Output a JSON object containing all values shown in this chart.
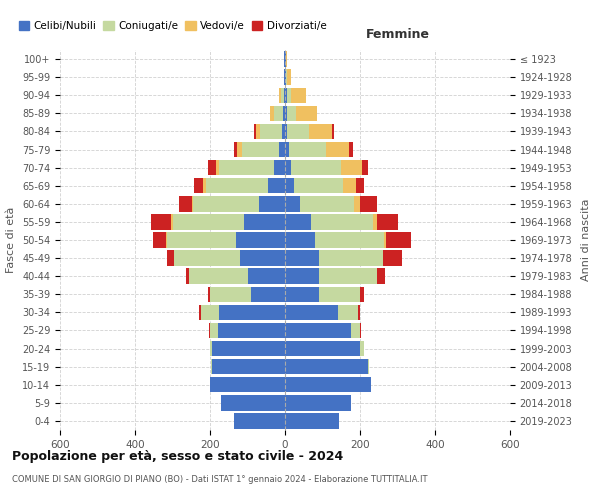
{
  "age_groups": [
    "0-4",
    "5-9",
    "10-14",
    "15-19",
    "20-24",
    "25-29",
    "30-34",
    "35-39",
    "40-44",
    "45-49",
    "50-54",
    "55-59",
    "60-64",
    "65-69",
    "70-74",
    "75-79",
    "80-84",
    "85-89",
    "90-94",
    "95-99",
    "100+"
  ],
  "birth_years": [
    "2019-2023",
    "2014-2018",
    "2009-2013",
    "2004-2008",
    "1999-2003",
    "1994-1998",
    "1989-1993",
    "1984-1988",
    "1979-1983",
    "1974-1978",
    "1969-1973",
    "1964-1968",
    "1959-1963",
    "1954-1958",
    "1949-1953",
    "1944-1948",
    "1939-1943",
    "1934-1938",
    "1929-1933",
    "1924-1928",
    "≤ 1923"
  ],
  "males": {
    "celibi": [
      135,
      170,
      200,
      195,
      195,
      180,
      175,
      90,
      100,
      120,
      130,
      110,
      70,
      45,
      30,
      15,
      8,
      5,
      3,
      2,
      2
    ],
    "coniugati": [
      0,
      0,
      0,
      3,
      5,
      20,
      50,
      110,
      155,
      175,
      185,
      190,
      175,
      165,
      145,
      100,
      60,
      25,
      8,
      2,
      0
    ],
    "vedovi": [
      0,
      0,
      0,
      0,
      0,
      0,
      0,
      0,
      0,
      1,
      2,
      3,
      4,
      8,
      10,
      12,
      10,
      10,
      5,
      0,
      0
    ],
    "divorziati": [
      0,
      0,
      0,
      0,
      0,
      2,
      5,
      5,
      10,
      20,
      35,
      55,
      35,
      25,
      20,
      10,
      5,
      0,
      0,
      0,
      0
    ]
  },
  "females": {
    "nubili": [
      145,
      175,
      230,
      220,
      200,
      175,
      140,
      90,
      90,
      90,
      80,
      70,
      40,
      25,
      15,
      10,
      5,
      5,
      5,
      2,
      2
    ],
    "coniugate": [
      0,
      0,
      0,
      5,
      10,
      25,
      55,
      110,
      155,
      170,
      185,
      165,
      145,
      130,
      135,
      100,
      60,
      25,
      10,
      3,
      0
    ],
    "vedove": [
      0,
      0,
      0,
      0,
      0,
      0,
      0,
      0,
      1,
      2,
      5,
      10,
      15,
      35,
      55,
      60,
      60,
      55,
      40,
      10,
      2
    ],
    "divorziate": [
      0,
      0,
      0,
      0,
      0,
      2,
      5,
      10,
      20,
      50,
      65,
      55,
      45,
      20,
      15,
      10,
      5,
      0,
      0,
      0,
      0
    ]
  },
  "colors": {
    "celibi": "#4472c4",
    "coniugati": "#c5d9a0",
    "vedovi": "#f0c060",
    "divorziati": "#cc2222"
  },
  "legend_labels": [
    "Celibi/Nubili",
    "Coniugati/e",
    "Vedovi/e",
    "Divorziati/e"
  ],
  "title": "Popolazione per età, sesso e stato civile - 2024",
  "subtitle": "COMUNE DI SAN GIORGIO DI PIANO (BO) - Dati ISTAT 1° gennaio 2024 - Elaborazione TUTTITALIA.IT",
  "xlabel_right": "Femmine",
  "ylabel_left": "Fasce di età",
  "ylabel_right": "Anni di nascita",
  "xlim": 600,
  "bg_color": "#ffffff",
  "grid_color": "#cccccc"
}
